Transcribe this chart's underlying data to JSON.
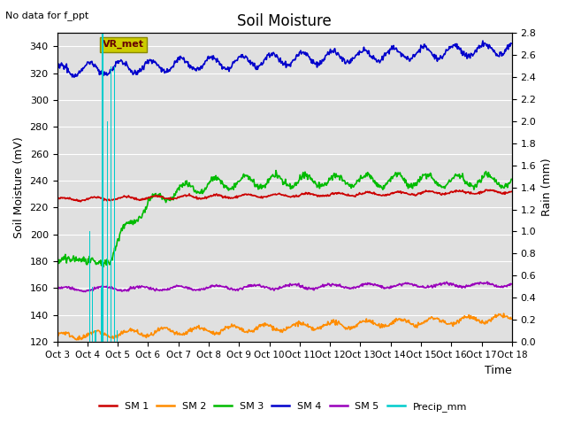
{
  "title": "Soil Moisture",
  "top_left_text": "No data for f_ppt",
  "annotation_text": "VR_met",
  "xlabel": "Time",
  "ylabel_left": "Soil Moisture (mV)",
  "ylabel_right": "Rain (mm)",
  "ylim_left": [
    120,
    350
  ],
  "ylim_right": [
    0.0,
    2.8
  ],
  "yticks_left": [
    120,
    140,
    160,
    180,
    200,
    220,
    240,
    260,
    280,
    300,
    320,
    340
  ],
  "yticks_right": [
    0.0,
    0.2,
    0.4,
    0.6,
    0.8,
    1.0,
    1.2,
    1.4,
    1.6,
    1.8,
    2.0,
    2.2,
    2.4,
    2.6,
    2.8
  ],
  "x_labels": [
    "Oct 3",
    "Oct 4",
    "Oct 5",
    "Oct 6",
    "Oct 7",
    "Oct 8",
    "Oct 9",
    "Oct 10",
    "Oct 11",
    "Oct 12",
    "Oct 13",
    "Oct 14",
    "Oct 15",
    "Oct 16",
    "Oct 17",
    "Oct 18"
  ],
  "sm1_color": "#cc0000",
  "sm2_color": "#ff8c00",
  "sm3_color": "#00bb00",
  "sm4_color": "#0000cc",
  "sm5_color": "#9900bb",
  "precip_color": "#00cccc",
  "background_color": "#e0e0e0",
  "grid_color": "#ffffff",
  "title_fontsize": 12,
  "annotation_bg": "#cccc00",
  "annotation_fg": "#660000",
  "n_days": 15
}
